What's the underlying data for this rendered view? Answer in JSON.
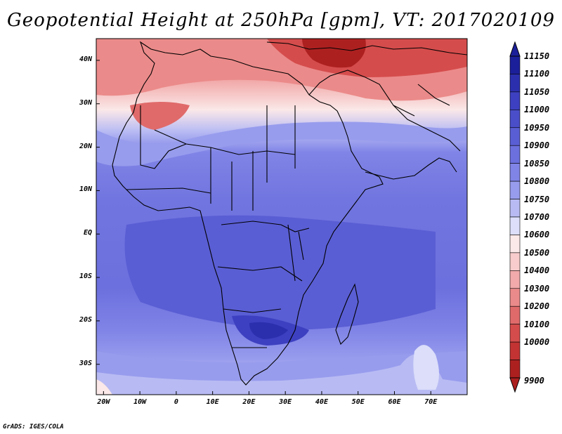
{
  "title": "Geopotential Height at 250hPa [gpm], VT: 2017020109",
  "credit": "GrADS: IGES/COLA",
  "lat_labels": [
    "40N",
    "30N",
    "20N",
    "10N",
    "EQ",
    "10S",
    "20S",
    "30S"
  ],
  "lat_values": [
    40,
    30,
    20,
    10,
    0,
    -10,
    -20,
    -30
  ],
  "lon_labels": [
    "20W",
    "10W",
    "0",
    "10E",
    "20E",
    "30E",
    "40E",
    "50E",
    "60E",
    "70E"
  ],
  "lon_values": [
    -20,
    -10,
    0,
    10,
    20,
    30,
    40,
    50,
    60,
    70
  ],
  "map_extent": {
    "lon_min": -22,
    "lon_max": 80,
    "lat_min": -37,
    "lat_max": 45
  },
  "colorbar": {
    "levels": [
      "11150",
      "11100",
      "11050",
      "11000",
      "10950",
      "10900",
      "10850",
      "10800",
      "10750",
      "10700",
      "10600",
      "10500",
      "10400",
      "10300",
      "10200",
      "10100",
      "10000",
      "9900"
    ],
    "colors": [
      "#1c1f9a",
      "#2b2fae",
      "#3d40c0",
      "#4a4ec9",
      "#5a5ed4",
      "#6c70de",
      "#8084e6",
      "#989ced",
      "#b8bbf3",
      "#dcdefa",
      "#fbe8e8",
      "#f8cccc",
      "#f2aaaa",
      "#eb8a8a",
      "#e06a6a",
      "#d54c4c",
      "#c43333",
      "#ad2020"
    ]
  }
}
